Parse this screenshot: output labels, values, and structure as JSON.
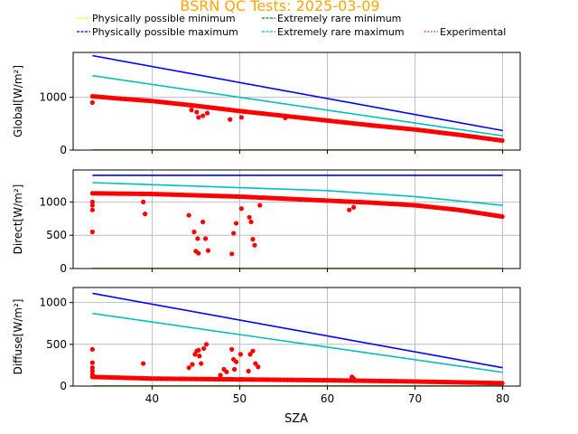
{
  "chart_data": {
    "type": "scatter",
    "title": "BSRN QC Tests: 2025-03-09",
    "title_color": "#ffa500",
    "xlabel": "SZA",
    "legend": [
      {
        "label": "Physically possible minimum",
        "color": "#ffff00",
        "style": "dashed"
      },
      {
        "label": "Physically possible maximum",
        "color": "#0000ff",
        "style": "dashed"
      },
      {
        "label": "Extremely rare minimum",
        "color": "#008000",
        "style": "dashed"
      },
      {
        "label": "Extremely rare maximum",
        "color": "#00bfbf",
        "style": "dashed"
      },
      {
        "label": "Experimental",
        "color": "#ff0000",
        "style": "dotted"
      }
    ],
    "legend_placement": "top, above plots",
    "grid": true,
    "xlim": [
      31,
      82
    ],
    "xticks": [
      40,
      50,
      60,
      70,
      80
    ],
    "panels": [
      {
        "ylabel": "Global[W/m²]",
        "ylim": [
          0,
          1850
        ],
        "yticks": [
          0,
          1000
        ],
        "x_tick_labels_shown": false,
        "lines": [
          {
            "name": "Physically possible minimum",
            "color": "#ffff00",
            "x": [
              33.2,
              80
            ],
            "y": [
              0,
              0
            ]
          },
          {
            "name": "Extremely rare minimum",
            "color": "#008000",
            "x": [
              33.2,
              80
            ],
            "y": [
              0,
              0
            ]
          },
          {
            "name": "Physically possible maximum",
            "color": "#0000ff",
            "x": [
              33.2,
              80
            ],
            "y": [
              1790,
              370
            ]
          },
          {
            "name": "Extremely rare maximum",
            "color": "#00bfbf",
            "x": [
              33.2,
              80
            ],
            "y": [
              1410,
              270
            ]
          }
        ],
        "experimental": {
          "color": "#ff0000",
          "curve_x": [
            33.2,
            36,
            40,
            45,
            50,
            55,
            60,
            65,
            70,
            75,
            80
          ],
          "curve_y": [
            1020,
            980,
            930,
            840,
            740,
            650,
            560,
            470,
            390,
            290,
            180
          ],
          "outliers": [
            [
              33.2,
              900
            ],
            [
              44.5,
              760
            ],
            [
              45.1,
              720
            ],
            [
              45.3,
              620
            ],
            [
              45.8,
              650
            ],
            [
              46.3,
              700
            ],
            [
              48.9,
              580
            ],
            [
              50.2,
              620
            ],
            [
              55.2,
              610
            ]
          ]
        }
      },
      {
        "ylabel": "Direct[W/m²]",
        "ylim": [
          0,
          1480
        ],
        "yticks": [
          0,
          500,
          1000
        ],
        "x_tick_labels_shown": false,
        "lines": [
          {
            "name": "Physically possible minimum",
            "color": "#ffff00",
            "x": [
              33.2,
              80
            ],
            "y": [
              0,
              0
            ]
          },
          {
            "name": "Extremely rare minimum",
            "color": "#008000",
            "x": [
              33.2,
              80
            ],
            "y": [
              0,
              0
            ]
          },
          {
            "name": "Physically possible maximum",
            "color": "#0000ff",
            "x": [
              33.2,
              80
            ],
            "y": [
              1400,
              1400
            ]
          },
          {
            "name": "Extremely rare maximum",
            "color": "#00bfbf",
            "x": [
              33.2,
              80,
              60,
              70
            ],
            "y": [
              1290,
              950,
              1170,
              1080
            ]
          }
        ],
        "experimental": {
          "color": "#ff0000",
          "curve_x": [
            33.2,
            40,
            45,
            50,
            55,
            60,
            65,
            70,
            75,
            80
          ],
          "curve_y": [
            1130,
            1120,
            1100,
            1080,
            1050,
            1020,
            990,
            950,
            880,
            780
          ],
          "outliers": [
            [
              33.2,
              550
            ],
            [
              33.2,
              880
            ],
            [
              33.2,
              950
            ],
            [
              33.2,
              1000
            ],
            [
              39,
              1000
            ],
            [
              39.2,
              820
            ],
            [
              44.2,
              800
            ],
            [
              44.8,
              550
            ],
            [
              45,
              260
            ],
            [
              45.3,
              230
            ],
            [
              45.8,
              700
            ],
            [
              46.1,
              450
            ],
            [
              46.4,
              270
            ],
            [
              45.2,
              450
            ],
            [
              49.1,
              220
            ],
            [
              49.3,
              530
            ],
            [
              49.6,
              680
            ],
            [
              50.2,
              900
            ],
            [
              51.1,
              770
            ],
            [
              51.3,
              700
            ],
            [
              51.5,
              440
            ],
            [
              51.7,
              350
            ],
            [
              52.3,
              950
            ],
            [
              62.5,
              880
            ],
            [
              63,
              920
            ]
          ]
        }
      },
      {
        "ylabel": "Diffuse[W/m²]",
        "ylim": [
          0,
          1180
        ],
        "yticks": [
          0,
          500,
          1000
        ],
        "x_tick_labels_shown": true,
        "lines": [
          {
            "name": "Physically possible minimum",
            "color": "#ffff00",
            "x": [
              33.2,
              80
            ],
            "y": [
              0,
              0
            ]
          },
          {
            "name": "Extremely rare minimum",
            "color": "#008000",
            "x": [
              33.2,
              80
            ],
            "y": [
              0,
              0
            ]
          },
          {
            "name": "Physically possible maximum",
            "color": "#0000ff",
            "x": [
              33.2,
              80
            ],
            "y": [
              1110,
              220
            ]
          },
          {
            "name": "Extremely rare maximum",
            "color": "#00bfbf",
            "x": [
              33.2,
              80
            ],
            "y": [
              870,
              165
            ]
          }
        ],
        "experimental": {
          "color": "#ff0000",
          "curve_x": [
            33.2,
            40,
            50,
            60,
            70,
            80
          ],
          "curve_y": [
            110,
            90,
            80,
            70,
            55,
            35
          ],
          "outliers": [
            [
              33.2,
              440
            ],
            [
              33.2,
              280
            ],
            [
              33.2,
              220
            ],
            [
              33.2,
              180
            ],
            [
              33.2,
              140
            ],
            [
              39,
              270
            ],
            [
              44.2,
              220
            ],
            [
              44.6,
              260
            ],
            [
              44.9,
              380
            ],
            [
              45.1,
              420
            ],
            [
              45.3,
              430
            ],
            [
              45.6,
              270
            ],
            [
              45.9,
              450
            ],
            [
              46.2,
              500
            ],
            [
              45.4,
              360
            ],
            [
              47.8,
              130
            ],
            [
              48.2,
              200
            ],
            [
              48.5,
              170
            ],
            [
              49.1,
              440
            ],
            [
              49.3,
              320
            ],
            [
              49.6,
              290
            ],
            [
              50.1,
              380
            ],
            [
              49.4,
              200
            ],
            [
              51.2,
              380
            ],
            [
              51.5,
              420
            ],
            [
              51.8,
              270
            ],
            [
              52.1,
              230
            ],
            [
              51.0,
              180
            ],
            [
              62.8,
              110
            ],
            [
              63,
              90
            ]
          ]
        }
      }
    ]
  }
}
